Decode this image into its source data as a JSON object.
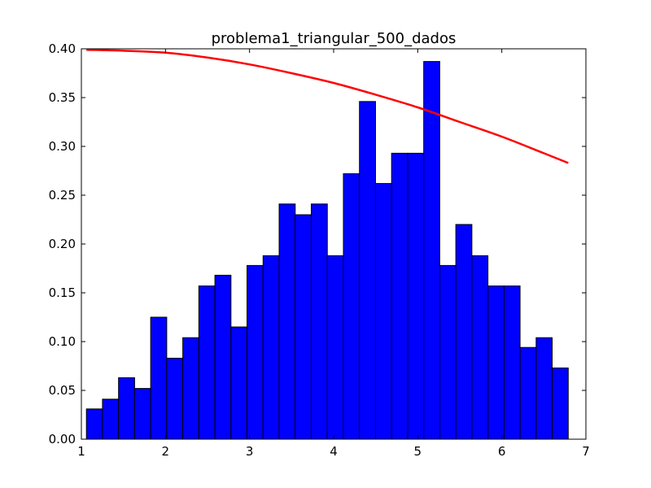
{
  "chart_data": {
    "type": "bar",
    "title": "problema1_triangular_500_dados",
    "xlabel": "",
    "ylabel": "",
    "xlim": [
      1,
      7
    ],
    "ylim": [
      0,
      0.4
    ],
    "xticks": [
      1,
      2,
      3,
      4,
      5,
      6,
      7
    ],
    "yticks": [
      0.0,
      0.05,
      0.1,
      0.15,
      0.2,
      0.25,
      0.3,
      0.35,
      0.4
    ],
    "ytick_labels": [
      "0.00",
      "0.05",
      "0.10",
      "0.15",
      "0.20",
      "0.25",
      "0.30",
      "0.35",
      "0.40"
    ],
    "grid": false,
    "bins": {
      "start": 1.06,
      "width": 0.191,
      "values": [
        0.031,
        0.041,
        0.063,
        0.052,
        0.125,
        0.083,
        0.104,
        0.157,
        0.168,
        0.115,
        0.178,
        0.188,
        0.241,
        0.23,
        0.241,
        0.188,
        0.272,
        0.346,
        0.262,
        0.293,
        0.293,
        0.387,
        0.178,
        0.22,
        0.188,
        0.157,
        0.157,
        0.094,
        0.104,
        0.073
      ]
    },
    "curve": {
      "x": [
        1.06,
        1.5,
        2.0,
        2.5,
        3.0,
        3.5,
        4.0,
        4.5,
        5.0,
        5.5,
        6.0,
        6.5,
        6.79
      ],
      "y": [
        0.399,
        0.398,
        0.396,
        0.391,
        0.384,
        0.375,
        0.365,
        0.353,
        0.34,
        0.325,
        0.31,
        0.293,
        0.283
      ]
    },
    "colors": {
      "bar_fill": "#0000ff",
      "bar_edge": "#000000",
      "curve": "#ff0000"
    }
  }
}
